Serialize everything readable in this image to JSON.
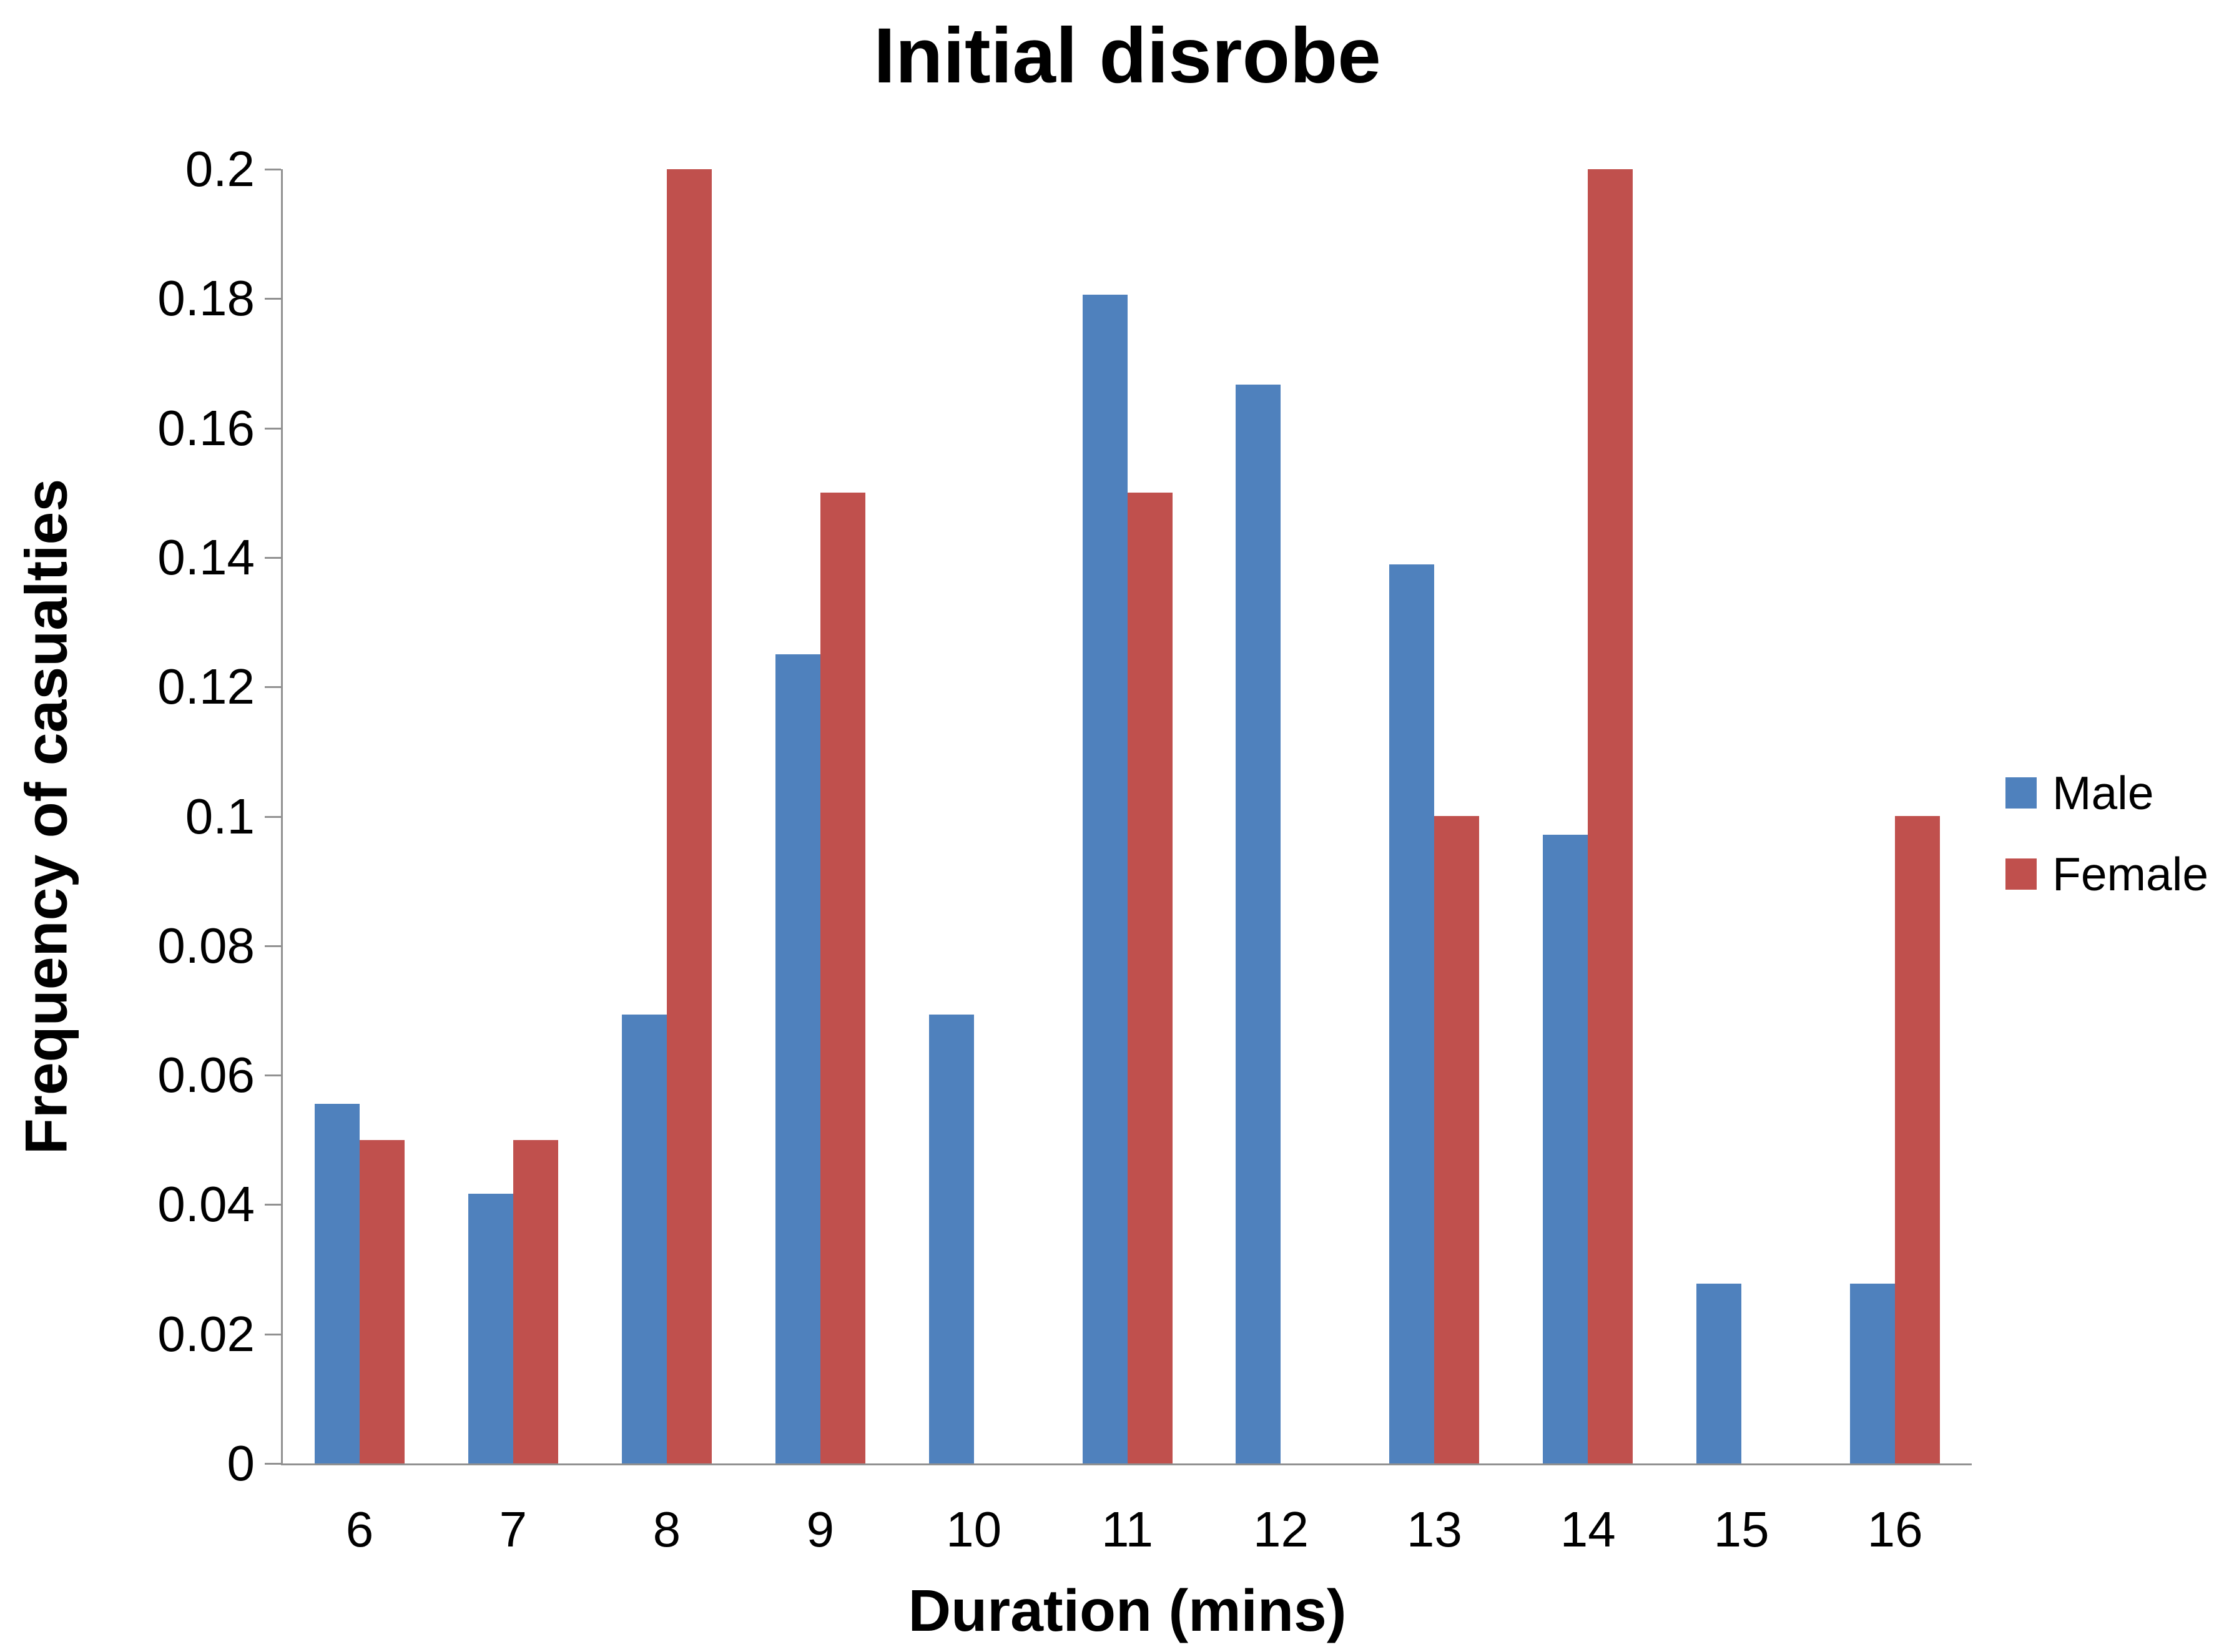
{
  "chart_data": {
    "type": "bar",
    "title": "Initial disrobe",
    "xlabel": "Duration (mins)",
    "ylabel": "Frequency of casualties",
    "categories": [
      "6",
      "7",
      "8",
      "9",
      "10",
      "11",
      "12",
      "13",
      "14",
      "15",
      "16"
    ],
    "series": [
      {
        "name": "Male",
        "color": "#4F81BD",
        "values": [
          0.0556,
          0.0417,
          0.0694,
          0.125,
          0.0694,
          0.1806,
          0.1667,
          0.1389,
          0.0972,
          0.0278,
          0.0278
        ]
      },
      {
        "name": "Female",
        "color": "#C0504D",
        "values": [
          0.05,
          0.05,
          0.2,
          0.15,
          0,
          0.15,
          0,
          0.1,
          0.2,
          0,
          0.1
        ]
      }
    ],
    "ylim": [
      0,
      0.2
    ],
    "yticks": [
      0,
      0.02,
      0.04,
      0.06,
      0.08,
      0.1,
      0.12,
      0.14,
      0.16,
      0.18,
      0.2
    ],
    "ytick_labels": [
      "0",
      "0.02",
      "0.04",
      "0.06",
      "0.08",
      "0.1",
      "0.12",
      "0.14",
      "0.16",
      "0.18",
      "0.2"
    ],
    "grid": false,
    "legend_position": "right",
    "axis_color": "#919191",
    "text_color": "#000000",
    "background_color": "#FFFFFF"
  }
}
